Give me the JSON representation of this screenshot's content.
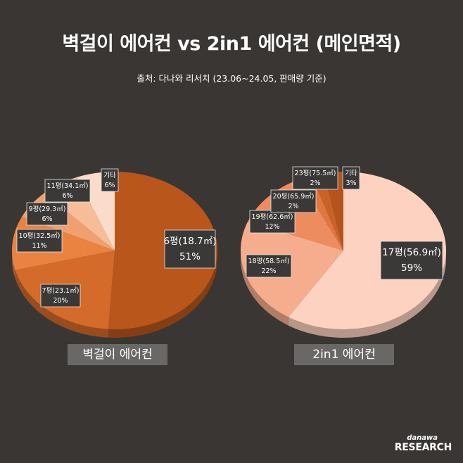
{
  "title": "벽걸이 에어컨 vs 2in1 에어컨 (메인면적)",
  "source": "출처: 다나와 리서치 (23.06~24.05, 판매량 기준)",
  "brand": {
    "top": "danawa",
    "bottom": "RESEARCH"
  },
  "chart_data": [
    {
      "type": "pie",
      "title": "벽걸이 에어컨",
      "slices": [
        {
          "label": "6평(18.7㎡)",
          "value": 51,
          "pct": "51%",
          "color": "#b9561b"
        },
        {
          "label": "7평(23.1㎡)",
          "value": 20,
          "pct": "20%",
          "color": "#d46b2b"
        },
        {
          "label": "10평(32.5㎡)",
          "value": 11,
          "pct": "11%",
          "color": "#ea8342"
        },
        {
          "label": "9평(29.3㎡)",
          "value": 6,
          "pct": "6%",
          "color": "#f0a06e"
        },
        {
          "label": "11평(34.1㎡)",
          "value": 6,
          "pct": "6%",
          "color": "#f7bd9a"
        },
        {
          "label": "기타",
          "value": 6,
          "pct": "6%",
          "color": "#fbdccb"
        }
      ]
    },
    {
      "type": "pie",
      "title": "2in1 에어컨",
      "slices": [
        {
          "label": "17평(56.9㎡)",
          "value": 59,
          "pct": "59%",
          "color": "#fdd2c0"
        },
        {
          "label": "18평(58.5㎡)",
          "value": 22,
          "pct": "22%",
          "color": "#f6ad8d"
        },
        {
          "label": "19평(62.6㎡)",
          "value": 12,
          "pct": "12%",
          "color": "#ed8d5f"
        },
        {
          "label": "20평(65.9㎡)",
          "value": 2,
          "pct": "2%",
          "color": "#e0773f"
        },
        {
          "label": "23평(75.5㎡)",
          "value": 2,
          "pct": "2%",
          "color": "#c9622a"
        },
        {
          "label": "기타",
          "value": 3,
          "pct": "3%",
          "color": "#b4541c"
        }
      ]
    }
  ]
}
